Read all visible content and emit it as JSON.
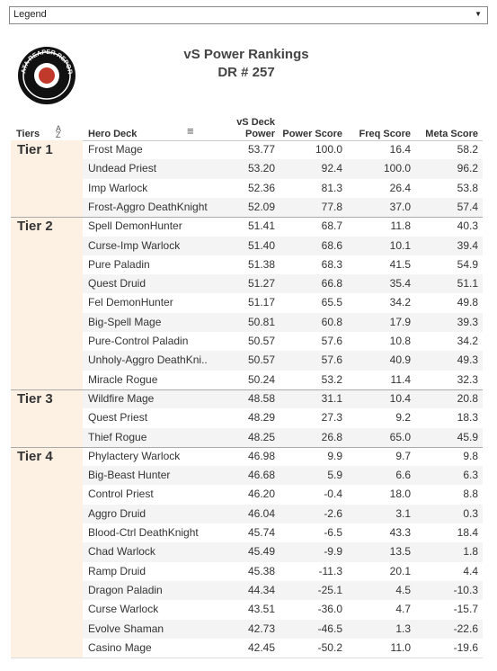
{
  "legend": {
    "label": "Legend"
  },
  "header": {
    "title": "vS Power Rankings",
    "subtitle": "DR # 257",
    "logo_text": "DATA REAPER REPORT"
  },
  "table": {
    "columns": [
      "Tiers",
      "Hero Deck",
      "vS Deck\nPower",
      "Power Score",
      "Freq Score",
      "Meta Score"
    ],
    "tiers": [
      {
        "name": "Tier 1",
        "rows": [
          [
            "Frost Mage",
            "53.77",
            "100.0",
            "16.4",
            "58.2"
          ],
          [
            "Undead Priest",
            "53.20",
            "92.4",
            "100.0",
            "96.2"
          ],
          [
            "Imp Warlock",
            "52.36",
            "81.3",
            "26.4",
            "53.8"
          ],
          [
            "Frost-Aggro DeathKnight",
            "52.09",
            "77.8",
            "37.0",
            "57.4"
          ]
        ]
      },
      {
        "name": "Tier 2",
        "rows": [
          [
            "Spell DemonHunter",
            "51.41",
            "68.7",
            "11.8",
            "40.3"
          ],
          [
            "Curse-Imp Warlock",
            "51.40",
            "68.6",
            "10.1",
            "39.4"
          ],
          [
            "Pure Paladin",
            "51.38",
            "68.3",
            "41.5",
            "54.9"
          ],
          [
            "Quest Druid",
            "51.27",
            "66.8",
            "35.4",
            "51.1"
          ],
          [
            "Fel DemonHunter",
            "51.17",
            "65.5",
            "34.2",
            "49.8"
          ],
          [
            "Big-Spell Mage",
            "50.81",
            "60.8",
            "17.9",
            "39.3"
          ],
          [
            "Pure-Control Paladin",
            "50.57",
            "57.6",
            "10.8",
            "34.2"
          ],
          [
            "Unholy-Aggro DeathKni..",
            "50.57",
            "57.6",
            "40.9",
            "49.3"
          ],
          [
            "Miracle Rogue",
            "50.24",
            "53.2",
            "11.4",
            "32.3"
          ]
        ]
      },
      {
        "name": "Tier 3",
        "rows": [
          [
            "Wildfire Mage",
            "48.58",
            "31.1",
            "10.4",
            "20.8"
          ],
          [
            "Quest Priest",
            "48.29",
            "27.3",
            "9.2",
            "18.3"
          ],
          [
            "Thief Rogue",
            "48.25",
            "26.8",
            "65.0",
            "45.9"
          ]
        ]
      },
      {
        "name": "Tier 4",
        "rows": [
          [
            "Phylactery Warlock",
            "46.98",
            "9.9",
            "9.7",
            "9.8"
          ],
          [
            "Big-Beast Hunter",
            "46.68",
            "5.9",
            "6.6",
            "6.3"
          ],
          [
            "Control Priest",
            "46.20",
            "-0.4",
            "18.0",
            "8.8"
          ],
          [
            "Aggro Druid",
            "46.04",
            "-2.6",
            "3.1",
            "0.3"
          ],
          [
            "Blood-Ctrl DeathKnight",
            "45.74",
            "-6.5",
            "43.3",
            "18.4"
          ],
          [
            "Chad Warlock",
            "45.49",
            "-9.9",
            "13.5",
            "1.8"
          ],
          [
            "Ramp Druid",
            "45.38",
            "-11.3",
            "20.1",
            "4.4"
          ],
          [
            "Dragon Paladin",
            "44.34",
            "-25.1",
            "4.5",
            "-10.3"
          ],
          [
            "Curse Warlock",
            "43.51",
            "-36.0",
            "4.7",
            "-15.7"
          ],
          [
            "Evolve Shaman",
            "42.73",
            "-46.5",
            "1.3",
            "-22.6"
          ],
          [
            "Casino Mage",
            "42.45",
            "-50.2",
            "11.0",
            "-19.6"
          ]
        ]
      }
    ]
  }
}
